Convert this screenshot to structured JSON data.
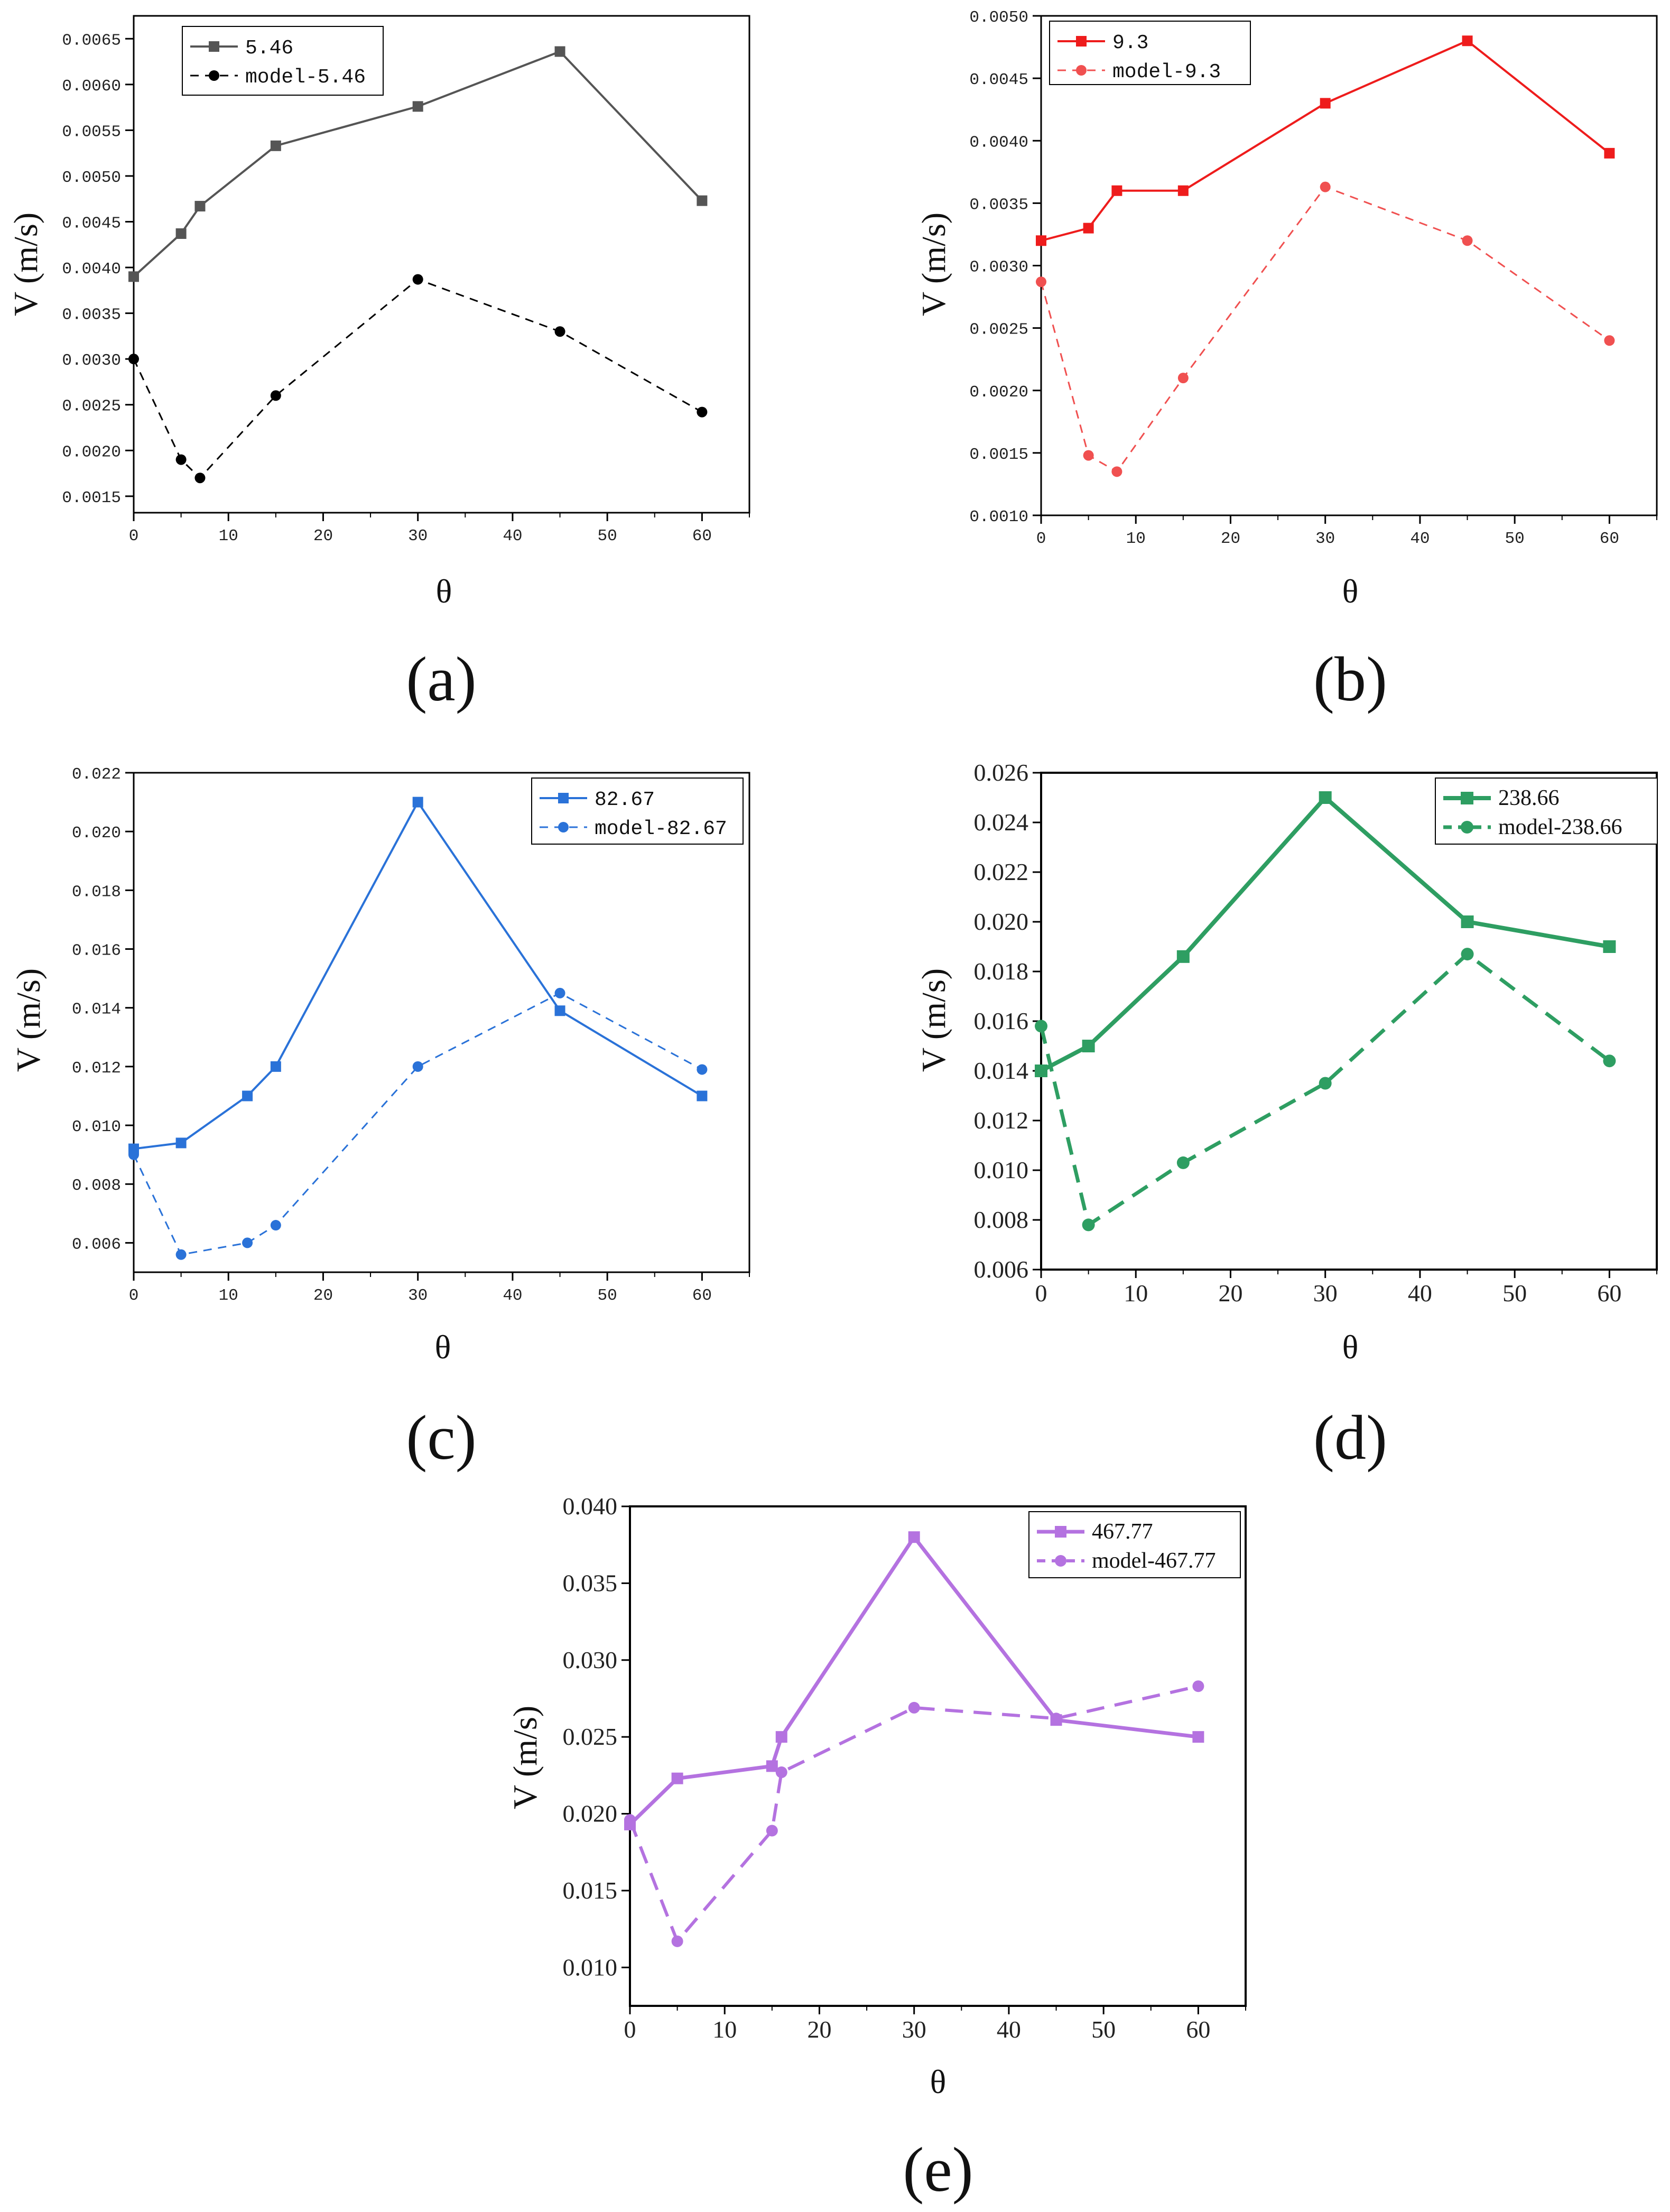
{
  "chart_data": [
    {
      "id": "a",
      "type": "line",
      "caption": "(a)",
      "xlabel": "θ",
      "ylabel": "V (m/s)",
      "xlim": [
        0,
        65
      ],
      "ylim": [
        0.00132,
        0.00675
      ],
      "xticks": [
        "0",
        "10",
        "20",
        "30",
        "40",
        "50",
        "60"
      ],
      "yticks": [
        "0.0015",
        "0.0020",
        "0.0025",
        "0.0030",
        "0.0035",
        "0.0040",
        "0.0045",
        "0.0050",
        "0.0055",
        "0.0060",
        "0.0065"
      ],
      "series": [
        {
          "name": "5.46",
          "color": "#555555",
          "marker": "square",
          "dash": "solid",
          "x": [
            0,
            5,
            7,
            15,
            30,
            45,
            60
          ],
          "y": [
            0.0039,
            0.00437,
            0.00467,
            0.00533,
            0.00576,
            0.00636,
            0.00473
          ]
        },
        {
          "name": "model-5.46",
          "color": "#000000",
          "marker": "circle",
          "dash": "dashed",
          "x": [
            0,
            5,
            7,
            15,
            30,
            45,
            60
          ],
          "y": [
            0.003,
            0.0019,
            0.0017,
            0.0026,
            0.00387,
            0.0033,
            0.00242
          ]
        }
      ]
    },
    {
      "id": "b",
      "type": "line",
      "caption": "(b)",
      "xlabel": "θ",
      "ylabel": "V (m/s)",
      "xlim": [
        0,
        65
      ],
      "ylim": [
        0.001,
        0.005
      ],
      "xticks": [
        "0",
        "10",
        "20",
        "30",
        "40",
        "50",
        "60"
      ],
      "yticks": [
        "0.0010",
        "0.0015",
        "0.0020",
        "0.0025",
        "0.0030",
        "0.0035",
        "0.0040",
        "0.0045",
        "0.0050"
      ],
      "series": [
        {
          "name": "9.3",
          "color": "#ee1c1c",
          "marker": "square",
          "dash": "solid",
          "x": [
            0,
            5,
            8,
            15,
            30,
            45,
            60
          ],
          "y": [
            0.0032,
            0.0033,
            0.0036,
            0.0036,
            0.0043,
            0.0048,
            0.0039
          ]
        },
        {
          "name": "model-9.3",
          "color": "#f05050",
          "marker": "circle",
          "dash": "dashed",
          "x": [
            0,
            5,
            8,
            15,
            30,
            45,
            60
          ],
          "y": [
            0.00287,
            0.00148,
            0.00135,
            0.0021,
            0.00363,
            0.0032,
            0.0024
          ]
        }
      ]
    },
    {
      "id": "c",
      "type": "line",
      "caption": "(c)",
      "xlabel": "θ",
      "ylabel": "V (m/s)",
      "xlim": [
        0,
        65
      ],
      "ylim": [
        0.005,
        0.022
      ],
      "xticks": [
        "0",
        "10",
        "20",
        "30",
        "40",
        "50",
        "60"
      ],
      "yticks": [
        "0.006",
        "0.008",
        "0.010",
        "0.012",
        "0.014",
        "0.016",
        "0.018",
        "0.020",
        "0.022"
      ],
      "series": [
        {
          "name": "82.67",
          "color": "#2a72d8",
          "marker": "square",
          "dash": "solid",
          "x": [
            0,
            5,
            12,
            15,
            30,
            45,
            60
          ],
          "y": [
            0.0092,
            0.0094,
            0.011,
            0.012,
            0.021,
            0.0139,
            0.011
          ]
        },
        {
          "name": "model-82.67",
          "color": "#2a72d8",
          "marker": "circle",
          "dash": "dashed",
          "x": [
            0,
            5,
            12,
            15,
            30,
            45,
            60
          ],
          "y": [
            0.009,
            0.0056,
            0.006,
            0.0066,
            0.012,
            0.0145,
            0.0119
          ]
        }
      ]
    },
    {
      "id": "d",
      "type": "line",
      "caption": "(d)",
      "xlabel": "θ",
      "ylabel": "V (m/s)",
      "xlim": [
        0,
        65
      ],
      "ylim": [
        0.006,
        0.026
      ],
      "xticks": [
        "0",
        "10",
        "20",
        "30",
        "40",
        "50",
        "60"
      ],
      "yticks": [
        "0.006",
        "0.008",
        "0.010",
        "0.012",
        "0.014",
        "0.016",
        "0.018",
        "0.020",
        "0.022",
        "0.024",
        "0.026"
      ],
      "series": [
        {
          "name": "238.66",
          "color": "#2e9e62",
          "marker": "square",
          "dash": "solid",
          "x": [
            0,
            5,
            15,
            30,
            45,
            60
          ],
          "y": [
            0.014,
            0.015,
            0.0186,
            0.025,
            0.02,
            0.019
          ]
        },
        {
          "name": "model-238.66",
          "color": "#2e9e62",
          "marker": "circle",
          "dash": "dashed",
          "x": [
            0,
            5,
            15,
            30,
            45,
            60
          ],
          "y": [
            0.0158,
            0.0078,
            0.0103,
            0.0135,
            0.0187,
            0.0144
          ]
        }
      ]
    },
    {
      "id": "e",
      "type": "line",
      "caption": "(e)",
      "xlabel": "θ",
      "ylabel": "V (m/s)",
      "xlim": [
        0,
        65
      ],
      "ylim": [
        0.0075,
        0.04
      ],
      "xticks": [
        "0",
        "10",
        "20",
        "30",
        "40",
        "50",
        "60"
      ],
      "yticks": [
        "0.010",
        "0.015",
        "0.020",
        "0.025",
        "0.030",
        "0.035",
        "0.040"
      ],
      "series": [
        {
          "name": "467.77",
          "color": "#b472e0",
          "marker": "square",
          "dash": "solid",
          "x": [
            0,
            5,
            15,
            16,
            30,
            45,
            60
          ],
          "y": [
            0.0193,
            0.0223,
            0.0231,
            0.025,
            0.038,
            0.0261,
            0.025
          ]
        },
        {
          "name": "model-467.77",
          "color": "#b472e0",
          "marker": "circle",
          "dash": "dashed",
          "x": [
            0,
            5,
            15,
            16,
            30,
            45,
            60
          ],
          "y": [
            0.0196,
            0.0117,
            0.0189,
            0.0227,
            0.0269,
            0.0262,
            0.0283
          ]
        }
      ]
    }
  ]
}
